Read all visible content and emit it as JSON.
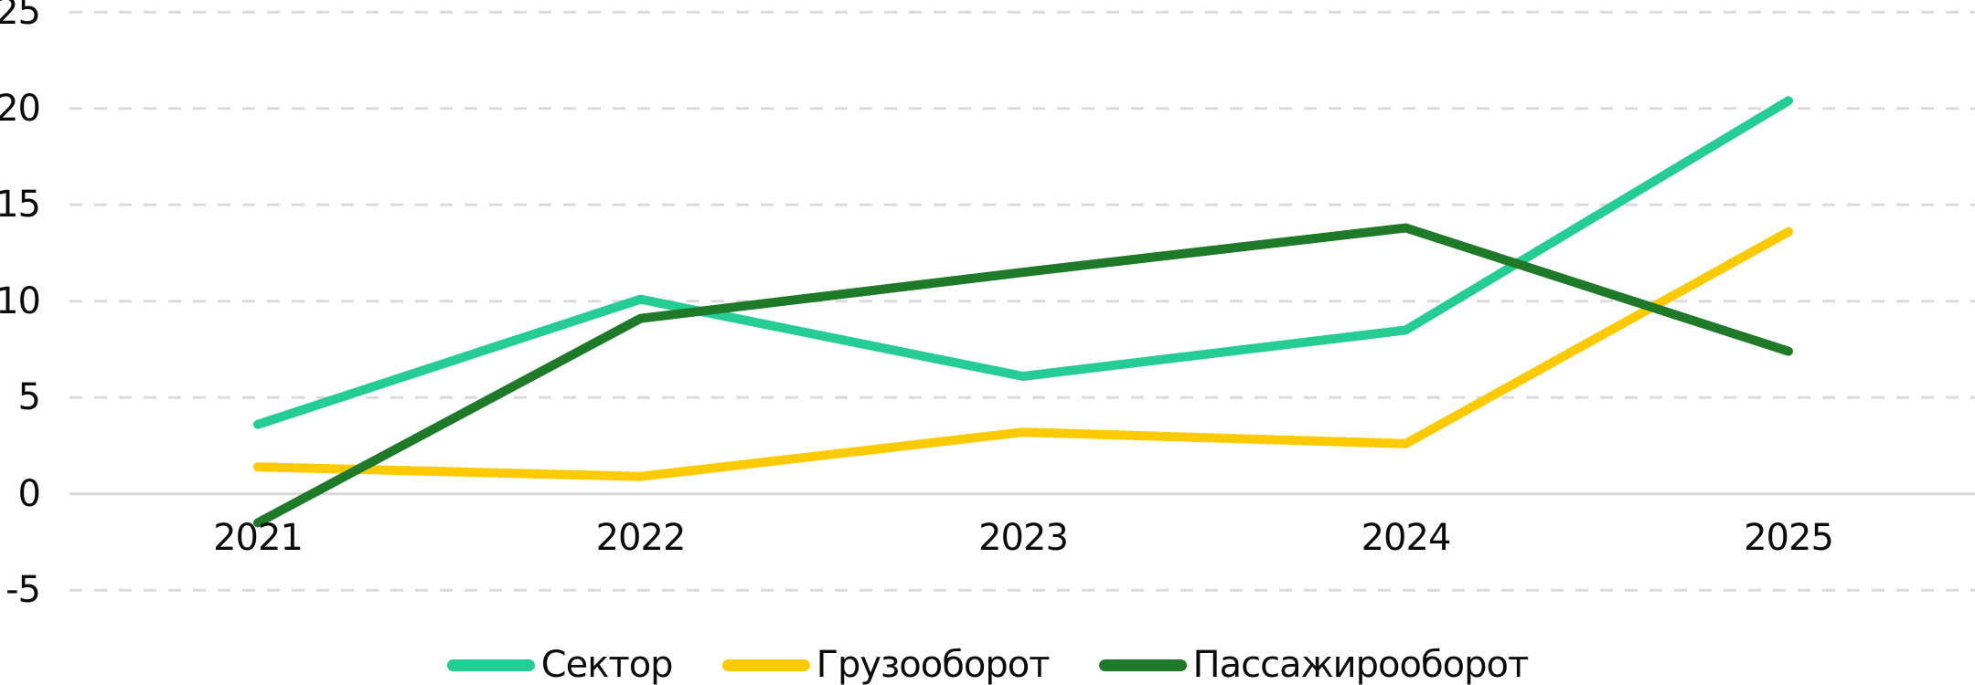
{
  "chart_data": {
    "type": "line",
    "title": "",
    "xlabel": "",
    "ylabel": "",
    "categories": [
      "2021",
      "2022",
      "2023",
      "2024",
      "2025"
    ],
    "series": [
      {
        "name": "Сектор",
        "color": "#26CD92",
        "values": [
          3.6,
          10.1,
          6.1,
          8.5,
          20.4
        ]
      },
      {
        "name": "Грузооборот",
        "color": "#FCCA00",
        "values": [
          1.4,
          0.9,
          3.2,
          2.6,
          13.6
        ]
      },
      {
        "name": "Пассажирооборот",
        "color": "#1E7A28",
        "values": [
          -1.5,
          9.1,
          11.5,
          13.8,
          7.4
        ]
      }
    ],
    "y_ticks": [
      25,
      20,
      15,
      10,
      5,
      0,
      -5
    ],
    "ylim": [
      -5,
      25
    ],
    "grid": {
      "horizontal": "dashed",
      "zero_line": "solid"
    },
    "legend_position": "bottom",
    "style": {
      "grid_color": "#DBDBDB",
      "zero_line_color": "#D8D8D8",
      "text_color": "#0B0B0B"
    }
  }
}
